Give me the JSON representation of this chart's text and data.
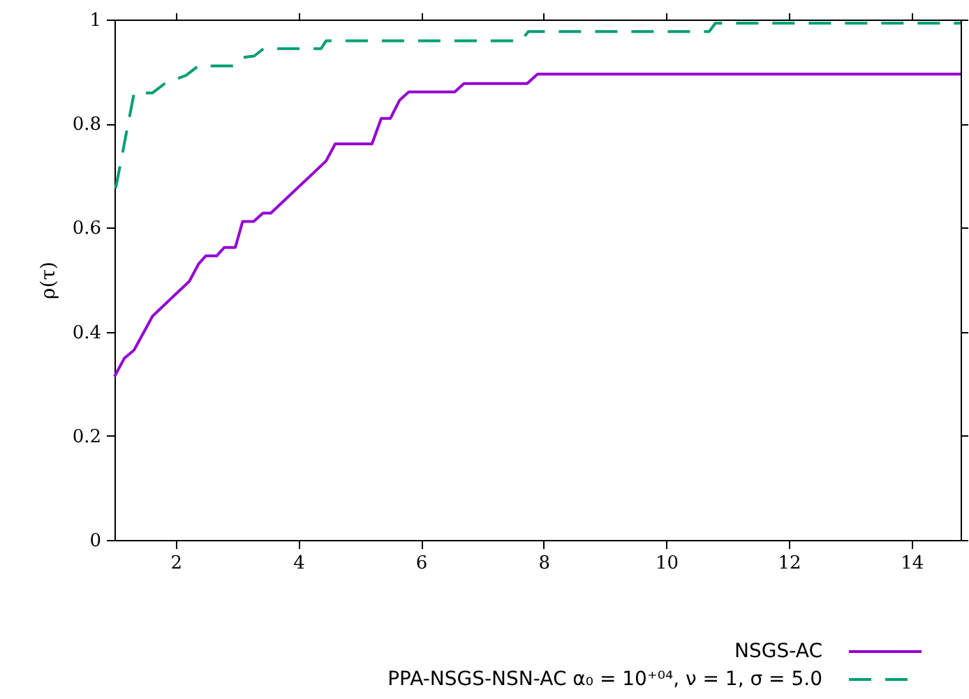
{
  "chart_data": {
    "type": "line",
    "ylabel": "ρ(τ)",
    "xlim": [
      1,
      14.8
    ],
    "xticks": [
      2,
      4,
      6,
      8,
      10,
      12,
      14
    ],
    "ylim": [
      0,
      1
    ],
    "yticks": [
      0,
      0.2,
      0.4,
      0.6,
      0.8,
      1
    ],
    "grid": false,
    "legend": "bottom right",
    "marker": "none",
    "series": [
      {
        "name": "NSGS-AC",
        "color": "#9400d3",
        "line_style": "solid",
        "x": [
          1,
          1.16,
          1.32,
          1.62,
          2.22,
          2.37,
          2.49,
          2.67,
          2.79,
          2.97,
          3.09,
          3.27,
          3.42,
          3.55,
          4.45,
          4.6,
          5.2,
          5.35,
          5.5,
          5.65,
          5.8,
          6.55,
          6.7,
          7.73,
          7.9,
          14.8
        ],
        "values": [
          0.314,
          0.349,
          0.365,
          0.43,
          0.497,
          0.53,
          0.546,
          0.546,
          0.562,
          0.562,
          0.612,
          0.612,
          0.628,
          0.628,
          0.728,
          0.761,
          0.761,
          0.81,
          0.81,
          0.845,
          0.861,
          0.861,
          0.877,
          0.877,
          0.895,
          0.895
        ]
      },
      {
        "name": "PPA-NSGS-NSN-AC α₀ = 10⁺⁰⁴, ν = 1, σ = 5.0",
        "color": "#009e73",
        "line_style": "dashed",
        "x": [
          1.02,
          1.32,
          1.62,
          1.82,
          2.17,
          2.37,
          2.95,
          3.09,
          3.28,
          3.43,
          4.37,
          4.45,
          7.63,
          7.75,
          10.7,
          10.8,
          14.8
        ],
        "values": [
          0.676,
          0.859,
          0.859,
          0.877,
          0.893,
          0.911,
          0.911,
          0.927,
          0.93,
          0.944,
          0.944,
          0.959,
          0.959,
          0.977,
          0.977,
          0.993,
          0.993
        ]
      }
    ]
  }
}
